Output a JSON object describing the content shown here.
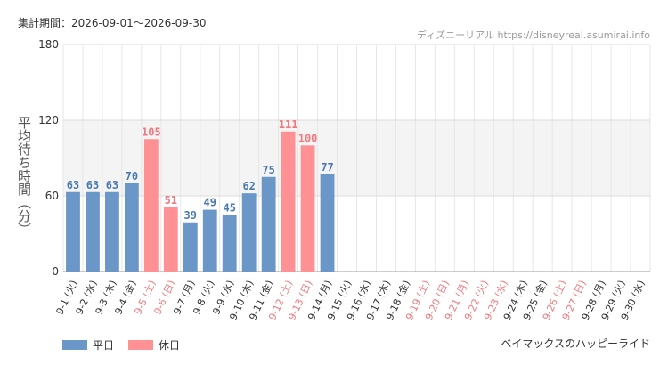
{
  "header": {
    "period": "集計期間：2026-09-01〜2026-09-30",
    "source": "ディズニーリアル https://disneyreal.asumirai.info"
  },
  "footer": {
    "attraction": "ベイマックスのハッピーライド"
  },
  "colors": {
    "weekday": "#6a97c7",
    "holiday": "#ff9094",
    "weekday_label": "#4a79b2",
    "holiday_label": "#f0787e",
    "band": "#f4f4f4"
  },
  "chart_data": {
    "type": "bar",
    "ylabel": "平均待ち時間（分）",
    "ylim": [
      0,
      180
    ],
    "yticks": [
      0,
      60,
      120,
      180
    ],
    "grid": true,
    "legend_placement": "bottom-left",
    "legend": [
      {
        "name": "平日",
        "key": "weekday"
      },
      {
        "name": "休日",
        "key": "holiday"
      }
    ],
    "categories": [
      "9-1 (火)",
      "9-2 (水)",
      "9-3 (木)",
      "9-4 (金)",
      "9-5 (土)",
      "9-6 (日)",
      "9-7 (月)",
      "9-8 (火)",
      "9-9 (水)",
      "9-10 (木)",
      "9-11 (金)",
      "9-12 (土)",
      "9-13 (日)",
      "9-14 (月)",
      "9-15 (火)",
      "9-16 (水)",
      "9-17 (木)",
      "9-18 (金)",
      "9-19 (土)",
      "9-20 (日)",
      "9-21 (月)",
      "9-22 (火)",
      "9-23 (水)",
      "9-24 (木)",
      "9-25 (金)",
      "9-26 (土)",
      "9-27 (日)",
      "9-28 (月)",
      "9-29 (火)",
      "9-30 (水)"
    ],
    "day_type": [
      "weekday",
      "weekday",
      "weekday",
      "weekday",
      "holiday",
      "holiday",
      "weekday",
      "weekday",
      "weekday",
      "weekday",
      "weekday",
      "holiday",
      "holiday",
      "weekday",
      "weekday",
      "weekday",
      "weekday",
      "weekday",
      "holiday",
      "holiday",
      "holiday",
      "holiday",
      "holiday",
      "weekday",
      "weekday",
      "holiday",
      "holiday",
      "weekday",
      "weekday",
      "weekday"
    ],
    "values": [
      63,
      63,
      63,
      70,
      105,
      51,
      39,
      49,
      45,
      62,
      75,
      111,
      100,
      77,
      null,
      null,
      null,
      null,
      null,
      null,
      null,
      null,
      null,
      null,
      null,
      null,
      null,
      null,
      null,
      null
    ]
  }
}
